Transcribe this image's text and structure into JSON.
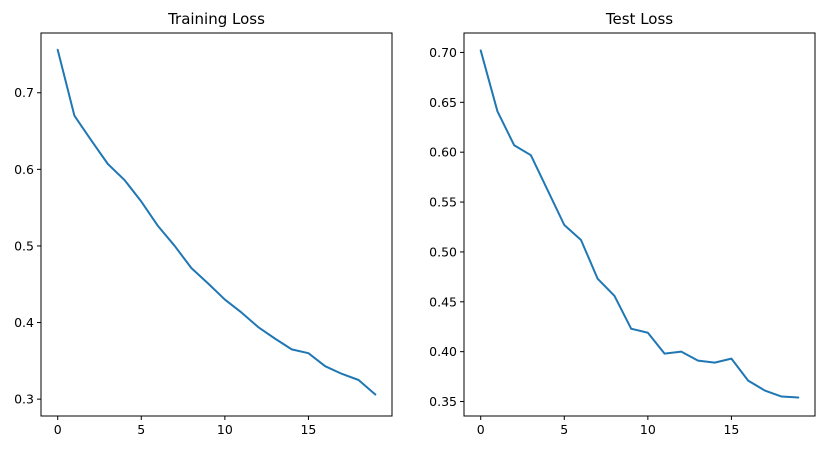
{
  "chart_data": [
    {
      "type": "line",
      "title": "Training Loss",
      "xlabel": "",
      "ylabel": "",
      "xlim": [
        -1,
        20
      ],
      "ylim": [
        0.278,
        0.778
      ],
      "x_ticks": [
        0,
        5,
        10,
        15
      ],
      "y_ticks": [
        0.3,
        0.4,
        0.5,
        0.6,
        0.7
      ],
      "grid": false,
      "x": [
        0,
        1,
        2,
        3,
        4,
        5,
        6,
        7,
        8,
        9,
        10,
        11,
        12,
        13,
        14,
        15,
        16,
        17,
        18,
        19
      ],
      "series": [
        {
          "color": "#1f77b4",
          "values": [
            0.756,
            0.67,
            0.638,
            0.607,
            0.586,
            0.558,
            0.526,
            0.5,
            0.471,
            0.451,
            0.43,
            0.413,
            0.394,
            0.379,
            0.365,
            0.36,
            0.343,
            0.333,
            0.325,
            0.306
          ]
        }
      ]
    },
    {
      "type": "line",
      "title": "Test Loss",
      "xlabel": "",
      "ylabel": "",
      "xlim": [
        -1,
        20
      ],
      "ylim": [
        0.3355,
        0.7195
      ],
      "x_ticks": [
        0,
        5,
        10,
        15
      ],
      "y_ticks": [
        0.35,
        0.4,
        0.45,
        0.5,
        0.55,
        0.6,
        0.65,
        0.7
      ],
      "grid": false,
      "x": [
        0,
        1,
        2,
        3,
        4,
        5,
        6,
        7,
        8,
        9,
        10,
        11,
        12,
        13,
        14,
        15,
        16,
        17,
        18,
        19
      ],
      "series": [
        {
          "color": "#1f77b4",
          "values": [
            0.702,
            0.641,
            0.607,
            0.597,
            0.562,
            0.527,
            0.512,
            0.473,
            0.456,
            0.423,
            0.419,
            0.398,
            0.4,
            0.391,
            0.389,
            0.393,
            0.371,
            0.361,
            0.355,
            0.354
          ]
        }
      ]
    }
  ]
}
